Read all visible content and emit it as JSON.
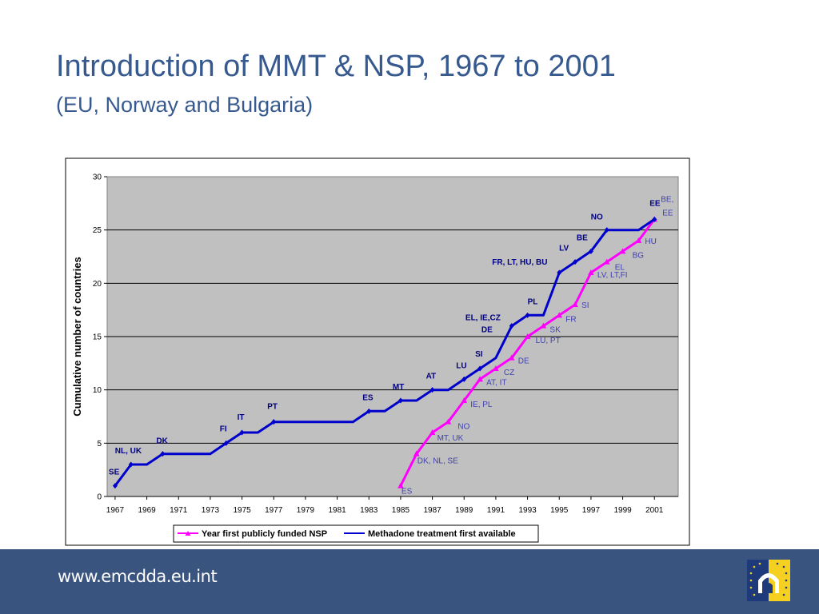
{
  "slide": {
    "title": "Introduction of MMT & NSP, 1967 to 2001",
    "subtitle": "(EU, Norway and Bulgaria)",
    "footer_url": "www.emcdda.eu.int"
  },
  "colors": {
    "plot_bg": "#c0c0c0",
    "nsp": "#ff00ff",
    "mmt": "#0000cc",
    "nsp_label": "#4040b0",
    "mmt_label": "#000080",
    "footer_bg": "#3a5480",
    "title": "#365a8f"
  },
  "chart_data": {
    "type": "line",
    "title": "",
    "xlabel": "",
    "ylabel": "Cumulative number of countries",
    "xlim": [
      1966.5,
      2002.5
    ],
    "ylim": [
      0,
      30
    ],
    "x_ticks": [
      "1967",
      "1969",
      "1971",
      "1973",
      "1975",
      "1977",
      "1979",
      "1981",
      "1983",
      "1985",
      "1987",
      "1989",
      "1991",
      "1993",
      "1995",
      "1997",
      "1999",
      "2001"
    ],
    "y_ticks": [
      "0",
      "5",
      "10",
      "15",
      "20",
      "25",
      "30"
    ],
    "grid": "horizontal",
    "legend_position": "bottom",
    "series": [
      {
        "name": "Year first publicly funded NSP",
        "color": "#ff00ff",
        "marker": "triangle",
        "x": [
          1985,
          1986,
          1987,
          1988,
          1989,
          1990,
          1991,
          1992,
          1993,
          1994,
          1995,
          1996,
          1997,
          1998,
          1999,
          2000,
          2001
        ],
        "y": [
          1,
          4,
          6,
          7,
          9,
          11,
          12,
          13,
          15,
          16,
          17,
          18,
          21,
          22,
          23,
          24,
          26
        ],
        "annotations": [
          {
            "x": 1985,
            "y": 1,
            "text": "ES"
          },
          {
            "x": 1986,
            "y": 4,
            "text": "DK, NL, SE"
          },
          {
            "x": 1987,
            "y": 6,
            "text": "MT, UK"
          },
          {
            "x": 1988,
            "y": 7,
            "text": "NO"
          },
          {
            "x": 1989,
            "y": 9,
            "text": "IE, PL"
          },
          {
            "x": 1990,
            "y": 11,
            "text": "AT, IT"
          },
          {
            "x": 1991,
            "y": 12,
            "text": "CZ"
          },
          {
            "x": 1992,
            "y": 13,
            "text": "DE"
          },
          {
            "x": 1993,
            "y": 15,
            "text": "LU, PT"
          },
          {
            "x": 1994,
            "y": 16,
            "text": "SK"
          },
          {
            "x": 1995,
            "y": 17,
            "text": "FR"
          },
          {
            "x": 1996,
            "y": 18,
            "text": "SI"
          },
          {
            "x": 1997,
            "y": 21,
            "text": "LV, LT,FI"
          },
          {
            "x": 1998,
            "y": 22,
            "text": "EL"
          },
          {
            "x": 1999,
            "y": 23,
            "text": "BG"
          },
          {
            "x": 2000,
            "y": 24,
            "text": "HU"
          },
          {
            "x": 2001,
            "y": 26,
            "text": "BE,"
          },
          {
            "x": 2001,
            "y": 26,
            "text": "EE"
          }
        ]
      },
      {
        "name": "Methadone treatment first available",
        "color": "#0000cc",
        "marker": "diamond",
        "x": [
          1967,
          1968,
          1969,
          1970,
          1971,
          1972,
          1973,
          1974,
          1975,
          1976,
          1977,
          1978,
          1979,
          1980,
          1981,
          1982,
          1983,
          1984,
          1985,
          1986,
          1987,
          1988,
          1989,
          1990,
          1991,
          1992,
          1993,
          1994,
          1995,
          1996,
          1997,
          1998,
          1999,
          2000,
          2001
        ],
        "y": [
          1,
          3,
          3,
          4,
          4,
          4,
          4,
          5,
          6,
          6,
          7,
          7,
          7,
          7,
          7,
          7,
          8,
          8,
          9,
          9,
          10,
          10,
          11,
          12,
          13,
          16,
          17,
          17,
          21,
          22,
          23,
          25,
          25,
          25,
          26
        ],
        "markers_at": [
          1967,
          1968,
          1970,
          1974,
          1975,
          1977,
          1983,
          1985,
          1987,
          1989,
          1990,
          1992,
          1993,
          1995,
          1996,
          1997,
          1998,
          2001
        ],
        "annotations": [
          {
            "x": 1967,
            "y": 1,
            "text": "SE"
          },
          {
            "x": 1968,
            "y": 3,
            "text": "NL, UK"
          },
          {
            "x": 1970,
            "y": 4,
            "text": "DK"
          },
          {
            "x": 1974,
            "y": 5,
            "text": "FI"
          },
          {
            "x": 1975,
            "y": 6,
            "text": "IT"
          },
          {
            "x": 1977,
            "y": 7,
            "text": "PT"
          },
          {
            "x": 1983,
            "y": 8,
            "text": "ES"
          },
          {
            "x": 1985,
            "y": 9,
            "text": "MT"
          },
          {
            "x": 1987,
            "y": 10,
            "text": "AT"
          },
          {
            "x": 1989,
            "y": 11,
            "text": "LU"
          },
          {
            "x": 1990,
            "y": 12,
            "text": "SI"
          },
          {
            "x": 1991,
            "y": 13,
            "text": "DE"
          },
          {
            "x": 1991,
            "y": 16,
            "text": "EL, IE,CZ"
          },
          {
            "x": 1993,
            "y": 17,
            "text": "PL"
          },
          {
            "x": 1995,
            "y": 21,
            "text": "FR, LT, HU, BU"
          },
          {
            "x": 1996,
            "y": 22,
            "text": "LV"
          },
          {
            "x": 1997,
            "y": 23,
            "text": "BE"
          },
          {
            "x": 1998,
            "y": 25,
            "text": "NO"
          },
          {
            "x": 2001,
            "y": 26,
            "text": "EE"
          }
        ]
      }
    ]
  }
}
